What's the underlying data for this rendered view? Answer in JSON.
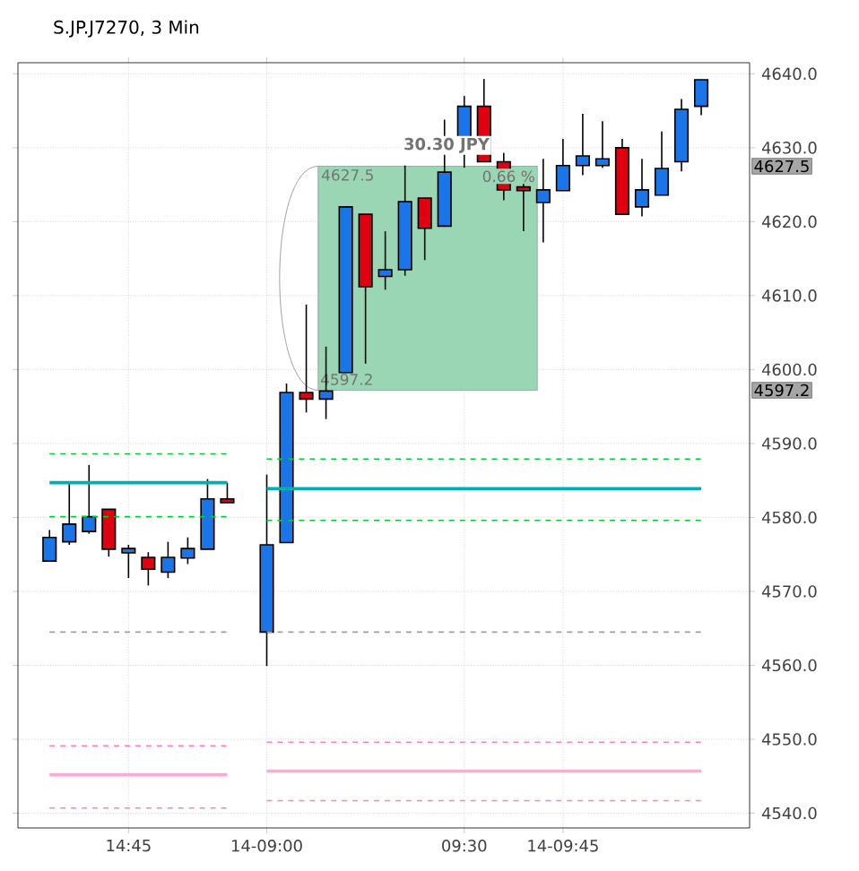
{
  "chart_data": {
    "type": "candlestick",
    "title": "S.JP.J7270, 3 Min",
    "categories": [
      null,
      null,
      null,
      null,
      "14:45",
      null,
      null,
      null,
      null,
      null,
      null,
      "14-09:00",
      null,
      null,
      null,
      null,
      null,
      null,
      null,
      null,
      null,
      "09:30",
      null,
      null,
      null,
      null,
      "14-09:45",
      null,
      null,
      null,
      null,
      null,
      null,
      null
    ],
    "ohlc": [
      [
        4574.1,
        4578.3,
        4574.1,
        4577.3
      ],
      [
        4576.7,
        4584.7,
        4576.3,
        4579.1
      ],
      [
        4578.1,
        4587.1,
        4577.8,
        4580.1
      ],
      [
        4581.1,
        4581.1,
        4574.7,
        4575.7
      ],
      [
        4575.2,
        4576.3,
        4571.8,
        4575.8
      ],
      [
        4574.6,
        4575.3,
        4570.8,
        4573
      ],
      [
        4572.6,
        4576.7,
        4571.8,
        4574.6
      ],
      [
        4574.5,
        4577.3,
        4573.7,
        4575.8
      ],
      [
        4575.7,
        4585.2,
        4575.7,
        4582.5
      ],
      [
        4582.5,
        4584.7,
        4582,
        4582
      ],
      null,
      [
        4564.5,
        4585.8,
        4559.9,
        4576.3
      ],
      [
        4576.6,
        4598.1,
        4576.6,
        4596.9
      ],
      [
        4596.9,
        4608.8,
        4594.2,
        4596
      ],
      [
        4596,
        4603.1,
        4593.3,
        4597.1
      ],
      [
        4599.6,
        4622,
        4599.6,
        4622
      ],
      [
        4621,
        4621,
        4600.8,
        4611.2
      ],
      [
        4612.6,
        4618.7,
        4610.8,
        4613.5
      ],
      [
        4613.5,
        4627.6,
        4612.7,
        4622.7
      ],
      [
        4623.2,
        4623.2,
        4614.8,
        4619.1
      ],
      [
        4619.4,
        4633.8,
        4619.4,
        4626.7
      ],
      [
        4629.5,
        4637,
        4627.3,
        4635.6
      ],
      [
        4635.6,
        4639.3,
        4628.1,
        4628.1
      ],
      [
        4628.1,
        4629.3,
        4622.9,
        4624.3
      ],
      [
        4624.7,
        4626.7,
        4618.7,
        4624.2
      ],
      [
        4622.6,
        4628.5,
        4617.2,
        4624.3
      ],
      [
        4624.2,
        4631.2,
        4624.2,
        4627.6
      ],
      [
        4627.6,
        4634.6,
        4626.3,
        4628.9
      ],
      [
        4627.6,
        4633.6,
        4627.3,
        4628.5
      ],
      [
        4630,
        4631.2,
        4621,
        4621
      ],
      [
        4622,
        4628.5,
        4620.7,
        4624.3
      ],
      [
        4623.6,
        4632.2,
        4623.6,
        4627.2
      ],
      [
        4628.1,
        4636.6,
        4626.8,
        4635.2
      ],
      [
        4635.6,
        4639.2,
        4634.4,
        4639.2
      ]
    ],
    "colors": [
      "#1a75e8",
      "#1a75e8",
      "#1a75e8",
      "#e00010",
      "#1a75e8",
      "#e00010",
      "#1a75e8",
      "#1a75e8",
      "#1a75e8",
      "#e00010",
      null,
      "#1a75e8",
      "#1a75e8",
      "#e00010",
      "#1a75e8",
      "#1a75e8",
      "#e00010",
      "#1a75e8",
      "#1a75e8",
      "#e00010",
      "#1a75e8",
      "#1a75e8",
      "#e00010",
      "#e00010",
      "#e00010",
      "#1a75e8",
      "#1a75e8",
      "#1a75e8",
      "#1a75e8",
      "#e00010",
      "#1a75e8",
      "#1a75e8",
      "#1a75e8",
      "#1a75e8"
    ],
    "series": [
      {
        "type": "line",
        "color": "#00cc33",
        "line_style": "dashed",
        "values": [
          4588.6,
          4588.6,
          4588.6,
          4588.6,
          4588.6,
          4588.6,
          4588.6,
          4588.6,
          4588.6,
          4588.6,
          null,
          4587.9,
          4587.9,
          4587.9,
          4587.9,
          4587.9,
          4587.9,
          4587.9,
          4587.9,
          4587.9,
          4587.9,
          4587.9,
          4587.9,
          4587.9,
          4587.9,
          4587.9,
          4587.9,
          4587.9,
          4587.9,
          4587.9,
          4587.9,
          4587.9,
          4587.9,
          4587.9
        ]
      },
      {
        "type": "line",
        "color": "#00b0b0",
        "line_style": "solid",
        "values": [
          4584.7,
          4584.7,
          4584.7,
          4584.7,
          4584.7,
          4584.7,
          4584.7,
          4584.7,
          4584.7,
          4584.7,
          null,
          4583.9,
          4583.9,
          4583.9,
          4583.9,
          4583.9,
          4583.9,
          4583.9,
          4583.9,
          4583.9,
          4583.9,
          4583.9,
          4583.9,
          4583.9,
          4583.9,
          4583.9,
          4583.9,
          4583.9,
          4583.9,
          4583.9,
          4583.9,
          4583.9,
          4583.9,
          4583.9
        ]
      },
      {
        "type": "line",
        "color": "#00cc33",
        "line_style": "dashed",
        "values": [
          4580.1,
          4580.1,
          4580.1,
          4580.1,
          4580.1,
          4580.1,
          4580.1,
          4580.1,
          4580.1,
          4580.1,
          null,
          4579.6,
          4579.6,
          4579.6,
          4579.6,
          4579.6,
          4579.6,
          4579.6,
          4579.6,
          4579.6,
          4579.6,
          4579.6,
          4579.6,
          4579.6,
          4579.6,
          4579.6,
          4579.6,
          4579.6,
          4579.6,
          4579.6,
          4579.6,
          4579.6,
          4579.6,
          4579.6
        ]
      },
      {
        "type": "line",
        "color": "#a0a0a0",
        "line_style": "dashed",
        "values": [
          4564.5,
          4564.5,
          4564.5,
          4564.5,
          4564.5,
          4564.5,
          4564.5,
          4564.5,
          4564.5,
          4564.5,
          null,
          4564.5,
          4564.5,
          4564.5,
          4564.5,
          4564.5,
          4564.5,
          4564.5,
          4564.5,
          4564.5,
          4564.5,
          4564.5,
          4564.5,
          4564.5,
          4564.5,
          4564.5,
          4564.5,
          4564.5,
          4564.5,
          4564.5,
          4564.5,
          4564.5,
          4564.5,
          4564.5
        ]
      },
      {
        "type": "line",
        "color": "#ff80c0",
        "line_style": "dashed",
        "values": [
          4549.1,
          4549.1,
          4549.1,
          4549.1,
          4549.1,
          4549.1,
          4549.1,
          4549.1,
          4549.1,
          4549.1,
          null,
          4549.6,
          4549.6,
          4549.6,
          4549.6,
          4549.6,
          4549.6,
          4549.6,
          4549.6,
          4549.6,
          4549.6,
          4549.6,
          4549.6,
          4549.6,
          4549.6,
          4549.6,
          4549.6,
          4549.6,
          4549.6,
          4549.6,
          4549.6,
          4549.6,
          4549.6,
          4549.6
        ]
      },
      {
        "type": "line",
        "color": "#ffa8d4",
        "line_style": "solid",
        "values": [
          4545.2,
          4545.2,
          4545.2,
          4545.2,
          4545.2,
          4545.2,
          4545.2,
          4545.2,
          4545.2,
          4545.2,
          null,
          4545.7,
          4545.7,
          4545.7,
          4545.7,
          4545.7,
          4545.7,
          4545.7,
          4545.7,
          4545.7,
          4545.7,
          4545.7,
          4545.7,
          4545.7,
          4545.7,
          4545.7,
          4545.7,
          4545.7,
          4545.7,
          4545.7,
          4545.7,
          4545.7,
          4545.7,
          4545.7
        ]
      },
      {
        "type": "line",
        "color": "#ff80c0",
        "line_style": "dashed",
        "values": [
          4540.7,
          4540.7,
          4540.7,
          4540.7,
          4540.7,
          4540.7,
          4540.7,
          4540.7,
          4540.7,
          4540.7,
          null,
          4541.7,
          4541.7,
          4541.7,
          4541.7,
          4541.7,
          4541.7,
          4541.7,
          4541.7,
          4541.7,
          4541.7,
          4541.7,
          4541.7,
          4541.7,
          4541.7,
          4541.7,
          4541.7,
          4541.7,
          4541.7,
          4541.7,
          4541.7,
          4541.7,
          4541.7,
          4541.7
        ]
      }
    ],
    "bands": [
      {
        "axis": "y",
        "from": 4597.2,
        "to": 4627.5,
        "color": "#9ad6b4"
      }
    ],
    "annotations": [
      {
        "text": "4627.5",
        "y": 4627.5
      },
      {
        "text": "4597.2",
        "y": 4597.2
      },
      "30.30 JPY",
      "0.66 %",
      "4627.5",
      "4597.2"
    ],
    "ylim": [
      4538,
      4641.5
    ],
    "yticks": [
      {
        "value": 4540,
        "label": "4540.0"
      },
      {
        "value": 4550,
        "label": "4550.0"
      },
      {
        "value": 4560,
        "label": "4560.0"
      },
      {
        "value": 4570,
        "label": "4570.0"
      },
      {
        "value": 4580,
        "label": "4580.0"
      },
      {
        "value": 4590,
        "label": "4590.0"
      },
      {
        "value": 4600,
        "label": "4600.0"
      },
      {
        "value": 4610,
        "label": "4610.0"
      },
      {
        "value": 4620,
        "label": "4620.0"
      },
      {
        "value": 4630,
        "label": "4630.0"
      },
      {
        "value": 4640,
        "label": "4640.0"
      }
    ],
    "grid": true
  }
}
